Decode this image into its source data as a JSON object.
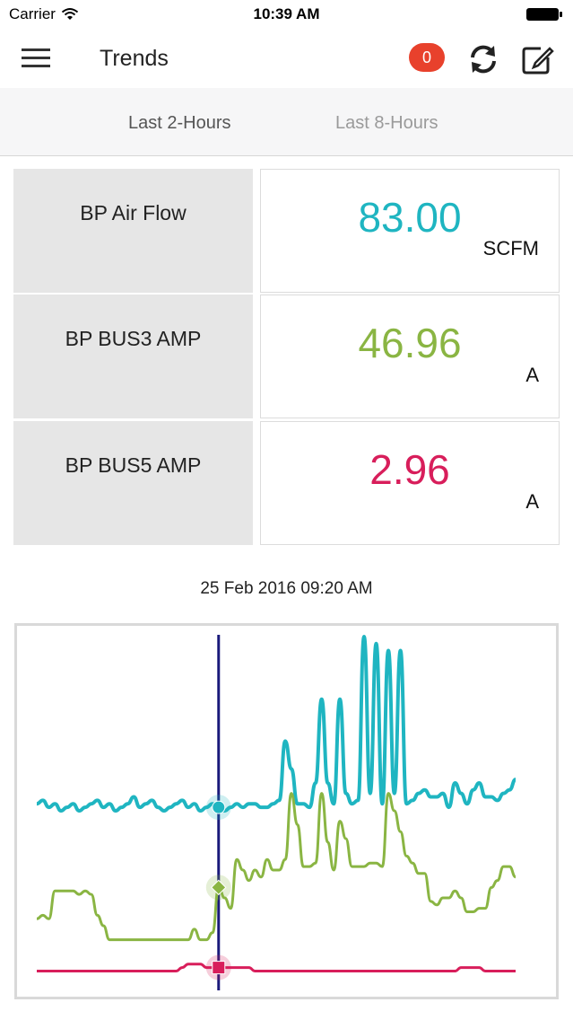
{
  "status_bar": {
    "carrier": "Carrier",
    "time": "10:39 AM"
  },
  "header": {
    "title": "Trends",
    "notification_count": "0"
  },
  "tabs": [
    {
      "label": "Last 2-Hours",
      "active": true
    },
    {
      "label": "Last 8-Hours",
      "active": false
    }
  ],
  "metrics": [
    {
      "label": "BP Air Flow",
      "value": "83.00",
      "unit": "SCFM",
      "color": "#1fb5c1"
    },
    {
      "label": "BP BUS3 AMP",
      "value": "46.96",
      "unit": "A",
      "color": "#8ab543"
    },
    {
      "label": "BP BUS5 AMP",
      "value": "2.96",
      "unit": "A",
      "color": "#d81e5b"
    }
  ],
  "timestamp": "25 Feb 2016 09:20 AM",
  "colors": {
    "badge": "#e8412c",
    "cursor_line": "#1a1a7a",
    "air_flow": "#1fb5c1",
    "bus3": "#8ab543",
    "bus5": "#d81e5b"
  },
  "chart_data": {
    "type": "line",
    "title": "",
    "xlabel": "",
    "ylabel": "",
    "x": [
      0,
      1,
      2,
      3,
      4,
      5,
      6,
      7,
      8,
      9,
      10,
      11,
      12,
      13,
      14,
      15,
      16,
      17,
      18,
      19,
      20,
      21,
      22,
      23,
      24,
      25,
      26,
      27,
      28,
      29,
      30,
      31,
      32,
      33,
      34,
      35,
      36,
      37,
      38,
      39,
      40,
      41,
      42,
      43,
      44,
      45,
      46,
      47,
      48,
      49,
      50,
      51,
      52,
      53,
      54,
      55,
      56,
      57,
      58,
      59,
      60,
      61,
      62,
      63,
      64,
      65,
      66,
      67,
      68,
      69,
      70,
      71,
      72,
      73,
      74,
      75,
      76,
      77,
      78,
      79
    ],
    "cursor_index": 30,
    "grid": false,
    "legend": "none",
    "ylim": [
      0,
      100
    ],
    "series": [
      {
        "color": "#1fb5c1",
        "marker": "circle",
        "values": [
          52,
          53,
          51,
          52,
          50,
          51,
          52,
          50,
          51,
          52,
          53,
          51,
          52,
          50,
          51,
          52,
          54,
          51,
          52,
          53,
          51,
          50,
          51,
          52,
          53,
          51,
          52,
          50,
          51,
          52,
          51,
          50,
          51,
          52,
          51,
          52,
          52,
          51,
          51,
          52,
          53,
          70,
          62,
          52,
          52,
          51,
          58,
          82,
          58,
          52,
          82,
          55,
          52,
          53,
          100,
          55,
          98,
          52,
          96,
          55,
          96,
          52,
          53,
          55,
          56,
          54,
          54,
          55,
          51,
          58,
          55,
          52,
          56,
          58,
          54,
          54,
          53,
          55,
          56,
          59
        ]
      },
      {
        "color": "#8ab543",
        "marker": "diamond",
        "values": [
          19,
          20,
          19,
          27,
          27,
          27,
          27,
          26,
          27,
          26,
          20,
          17,
          13,
          13,
          13,
          13,
          13,
          13,
          13,
          13,
          13,
          13,
          13,
          13,
          13,
          13,
          16,
          13,
          13,
          15,
          28,
          25,
          22,
          36,
          33,
          30,
          33,
          31,
          36,
          33,
          33,
          36,
          55,
          46,
          34,
          34,
          35,
          55,
          41,
          33,
          47,
          42,
          34,
          34,
          34,
          35,
          35,
          34,
          55,
          50,
          44,
          37,
          35,
          32,
          32,
          24,
          23,
          25,
          25,
          27,
          25,
          21,
          21,
          22,
          22,
          28,
          30,
          34,
          34,
          31
        ]
      },
      {
        "color": "#d81e5b",
        "marker": "square",
        "values": [
          4,
          4,
          4,
          4,
          4,
          4,
          4,
          4,
          4,
          4,
          4,
          4,
          4,
          4,
          4,
          4,
          4,
          4,
          4,
          4,
          4,
          4,
          4,
          4,
          5,
          6,
          6,
          6,
          5,
          5,
          5,
          5,
          5,
          5,
          5,
          5,
          4,
          4,
          4,
          4,
          4,
          4,
          4,
          4,
          4,
          4,
          4,
          4,
          4,
          4,
          4,
          4,
          4,
          4,
          4,
          4,
          4,
          4,
          4,
          4,
          4,
          4,
          4,
          4,
          4,
          4,
          4,
          4,
          4,
          4,
          5,
          5,
          5,
          5,
          4,
          4,
          4,
          4,
          4,
          4
        ]
      }
    ]
  }
}
